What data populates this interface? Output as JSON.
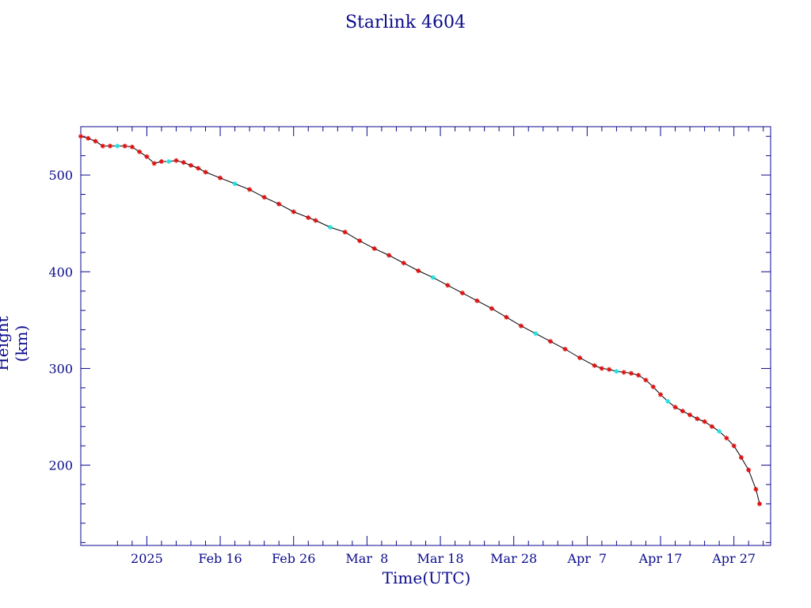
{
  "chart_data": {
    "type": "line",
    "title": "Starlink 4604",
    "xlabel": "Time(UTC)",
    "ylabel": "Height (km)",
    "x_range": [
      "2025-01-28",
      "2025-05-02"
    ],
    "ylim": [
      117,
      550
    ],
    "y_ticks": [
      200,
      300,
      400,
      500
    ],
    "x_ticks": [
      {
        "date": "2025-02-06",
        "label": "2025"
      },
      {
        "date": "2025-02-16",
        "label": "Feb 16"
      },
      {
        "date": "2025-02-26",
        "label": "Feb 26"
      },
      {
        "date": "2025-03-08",
        "label": "Mar  8"
      },
      {
        "date": "2025-03-18",
        "label": "Mar 18"
      },
      {
        "date": "2025-03-28",
        "label": "Mar 28"
      },
      {
        "date": "2025-04-07",
        "label": "Apr  7"
      },
      {
        "date": "2025-04-17",
        "label": "Apr 17"
      },
      {
        "date": "2025-04-27",
        "label": "Apr 27"
      }
    ],
    "grid": false,
    "colors": {
      "axis": "#0a0a8c",
      "line": "#000000",
      "marker": "#e01010",
      "marker_alt": "#20e0e0"
    },
    "series": [
      {
        "points": [
          [
            "2025-01-28",
            540
          ],
          [
            "2025-01-29",
            538
          ],
          [
            "2025-01-30",
            535
          ],
          [
            "2025-01-31",
            530
          ],
          [
            "2025-02-01",
            530
          ],
          [
            "2025-02-02",
            530
          ],
          [
            "2025-02-03",
            530
          ],
          [
            "2025-02-04",
            529
          ],
          [
            "2025-02-05",
            524
          ],
          [
            "2025-02-06",
            519
          ],
          [
            "2025-02-07",
            512
          ],
          [
            "2025-02-08",
            514
          ],
          [
            "2025-02-09",
            514
          ],
          [
            "2025-02-10",
            515
          ],
          [
            "2025-02-11",
            513
          ],
          [
            "2025-02-12",
            510
          ],
          [
            "2025-02-13",
            507
          ],
          [
            "2025-02-14",
            503
          ],
          [
            "2025-02-16",
            497
          ],
          [
            "2025-02-18",
            491
          ],
          [
            "2025-02-20",
            485
          ],
          [
            "2025-02-22",
            477
          ],
          [
            "2025-02-24",
            470
          ],
          [
            "2025-02-26",
            462
          ],
          [
            "2025-02-28",
            456
          ],
          [
            "2025-03-01",
            453
          ],
          [
            "2025-03-03",
            446
          ],
          [
            "2025-03-05",
            441
          ],
          [
            "2025-03-07",
            432
          ],
          [
            "2025-03-09",
            424
          ],
          [
            "2025-03-11",
            417
          ],
          [
            "2025-03-13",
            409
          ],
          [
            "2025-03-15",
            401
          ],
          [
            "2025-03-17",
            394
          ],
          [
            "2025-03-19",
            386
          ],
          [
            "2025-03-21",
            378
          ],
          [
            "2025-03-23",
            370
          ],
          [
            "2025-03-25",
            362
          ],
          [
            "2025-03-27",
            353
          ],
          [
            "2025-03-29",
            344
          ],
          [
            "2025-03-31",
            336
          ],
          [
            "2025-04-02",
            328
          ],
          [
            "2025-04-04",
            320
          ],
          [
            "2025-04-06",
            311
          ],
          [
            "2025-04-08",
            303
          ],
          [
            "2025-04-09",
            300
          ],
          [
            "2025-04-10",
            299
          ],
          [
            "2025-04-11",
            297
          ],
          [
            "2025-04-12",
            296
          ],
          [
            "2025-04-13",
            295
          ],
          [
            "2025-04-14",
            293
          ],
          [
            "2025-04-15",
            288
          ],
          [
            "2025-04-16",
            281
          ],
          [
            "2025-04-17",
            273
          ],
          [
            "2025-04-18",
            266
          ],
          [
            "2025-04-19",
            260
          ],
          [
            "2025-04-20",
            256
          ],
          [
            "2025-04-21",
            252
          ],
          [
            "2025-04-22",
            248
          ],
          [
            "2025-04-23",
            245
          ],
          [
            "2025-04-24",
            240
          ],
          [
            "2025-04-25",
            235
          ],
          [
            "2025-04-26",
            228
          ],
          [
            "2025-04-27",
            220
          ],
          [
            "2025-04-28",
            208
          ],
          [
            "2025-04-29",
            195
          ],
          [
            "2025-04-30",
            175
          ],
          [
            "2025-04-30T12",
            160
          ]
        ]
      }
    ]
  }
}
